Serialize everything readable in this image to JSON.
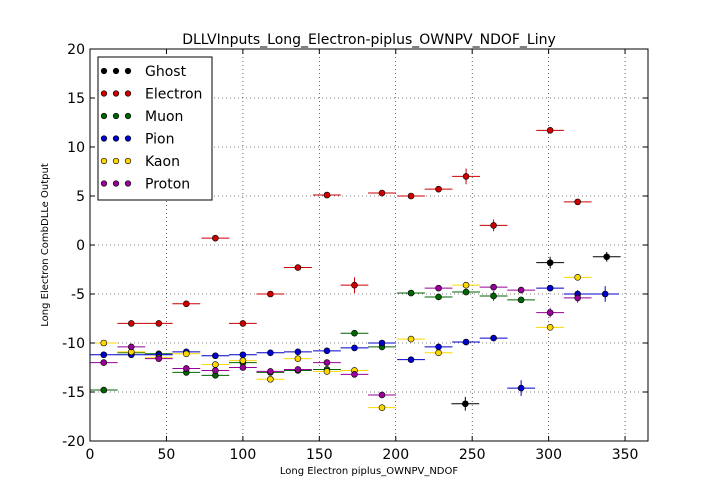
{
  "chart_data": {
    "type": "scatter",
    "title": "DLLVInputs_Long_Electron-piplus_OWNPV_NDOF_Liny",
    "xlabel": "Long Electron piplus_OWNPV_NDOF",
    "ylabel": "Long Electron CombDLLe Output",
    "xlim": [
      0,
      365
    ],
    "ylim": [
      -20,
      20
    ],
    "xticks": [
      0,
      50,
      100,
      150,
      200,
      250,
      300,
      350
    ],
    "yticks": [
      -20,
      -15,
      -10,
      -5,
      0,
      5,
      10,
      15,
      20
    ],
    "grid": true,
    "legend_position": "top-left",
    "series": [
      {
        "name": "Ghost",
        "color": "#000000",
        "points": [
          [
            245.5,
            -16.2,
            0.7
          ],
          [
            301,
            -1.8,
            0.6
          ],
          [
            338,
            -1.2,
            0.5
          ]
        ]
      },
      {
        "name": "Electron",
        "color": "#cc0000",
        "points": [
          [
            27,
            -8.0,
            0.3
          ],
          [
            45,
            -8.0,
            0.3
          ],
          [
            63,
            -6.0,
            0.3
          ],
          [
            82,
            0.7,
            0.3
          ],
          [
            100,
            -8.0,
            0.3
          ],
          [
            118,
            -5.0,
            0.3
          ],
          [
            136,
            -2.3,
            0.3
          ],
          [
            155,
            5.1,
            0.3
          ],
          [
            173,
            -4.1,
            0.8
          ],
          [
            191,
            5.3,
            0.3
          ],
          [
            210,
            5.0,
            0.3
          ],
          [
            228,
            5.7,
            0.3
          ],
          [
            246,
            7.0,
            0.8
          ],
          [
            264,
            2.0,
            0.6
          ],
          [
            301,
            11.7,
            0.3
          ],
          [
            319,
            4.4,
            0.3
          ]
        ]
      },
      {
        "name": "Muon",
        "color": "#006400",
        "points": [
          [
            9,
            -14.8,
            0.3
          ],
          [
            27,
            -11.0,
            0.3
          ],
          [
            45,
            -11.1,
            0.3
          ],
          [
            63,
            -13.0,
            0.3
          ],
          [
            82,
            -13.3,
            0.3
          ],
          [
            100,
            -12.0,
            0.3
          ],
          [
            118,
            -13.0,
            0.3
          ],
          [
            136,
            -12.8,
            0.3
          ],
          [
            155,
            -12.7,
            0.3
          ],
          [
            173,
            -9.0,
            0.3
          ],
          [
            191,
            -10.4,
            0.3
          ],
          [
            210,
            -4.9,
            0.3
          ],
          [
            228,
            -5.3,
            0.3
          ],
          [
            246,
            -4.8,
            0.3
          ],
          [
            264,
            -5.2,
            0.5
          ],
          [
            282,
            -5.6,
            0.3
          ]
        ]
      },
      {
        "name": "Pion",
        "color": "#0000cc",
        "points": [
          [
            9,
            -11.2,
            0.3
          ],
          [
            27,
            -11.2,
            0.3
          ],
          [
            45,
            -11.2,
            0.3
          ],
          [
            63,
            -10.9,
            0.3
          ],
          [
            82,
            -11.3,
            0.3
          ],
          [
            100,
            -11.2,
            0.3
          ],
          [
            118,
            -11.0,
            0.3
          ],
          [
            136,
            -10.9,
            0.3
          ],
          [
            155,
            -10.8,
            0.3
          ],
          [
            173,
            -10.5,
            0.3
          ],
          [
            191,
            -10.0,
            0.3
          ],
          [
            210,
            -11.7,
            0.3
          ],
          [
            228,
            -10.4,
            0.3
          ],
          [
            246,
            -9.9,
            0.3
          ],
          [
            264,
            -9.5,
            0.3
          ],
          [
            282,
            -14.6,
            0.8
          ],
          [
            301,
            -4.4,
            0.3
          ],
          [
            319,
            -5.0,
            0.4
          ],
          [
            337,
            -5.0,
            0.8
          ]
        ]
      },
      {
        "name": "Kaon",
        "color": "#ffd700",
        "points": [
          [
            9,
            -10.0,
            0.3
          ],
          [
            27,
            -10.9,
            0.3
          ],
          [
            45,
            -11.5,
            0.3
          ],
          [
            63,
            -11.1,
            0.3
          ],
          [
            82,
            -12.2,
            0.3
          ],
          [
            100,
            -11.8,
            0.3
          ],
          [
            118,
            -13.7,
            0.3
          ],
          [
            136,
            -11.6,
            0.3
          ],
          [
            155,
            -12.9,
            0.3
          ],
          [
            173,
            -12.8,
            0.3
          ],
          [
            191,
            -16.6,
            0.3
          ],
          [
            210,
            -9.6,
            0.3
          ],
          [
            228,
            -11.0,
            0.3
          ],
          [
            246,
            -4.1,
            0.3
          ],
          [
            301,
            -8.4,
            0.3
          ],
          [
            319,
            -3.3,
            0.3
          ]
        ]
      },
      {
        "name": "Proton",
        "color": "#990099",
        "points": [
          [
            9,
            -12.0,
            0.3
          ],
          [
            27,
            -10.4,
            0.3
          ],
          [
            45,
            -11.6,
            0.3
          ],
          [
            63,
            -12.6,
            0.3
          ],
          [
            82,
            -12.8,
            0.3
          ],
          [
            100,
            -12.5,
            0.3
          ],
          [
            118,
            -12.9,
            0.3
          ],
          [
            136,
            -12.7,
            0.3
          ],
          [
            155,
            -12.0,
            0.3
          ],
          [
            173,
            -13.2,
            0.3
          ],
          [
            191,
            -15.3,
            0.3
          ],
          [
            228,
            -4.4,
            0.3
          ],
          [
            264,
            -4.3,
            0.3
          ],
          [
            282,
            -4.6,
            0.3
          ],
          [
            301,
            -6.9,
            0.5
          ],
          [
            319,
            -5.4,
            0.5
          ]
        ]
      }
    ]
  }
}
